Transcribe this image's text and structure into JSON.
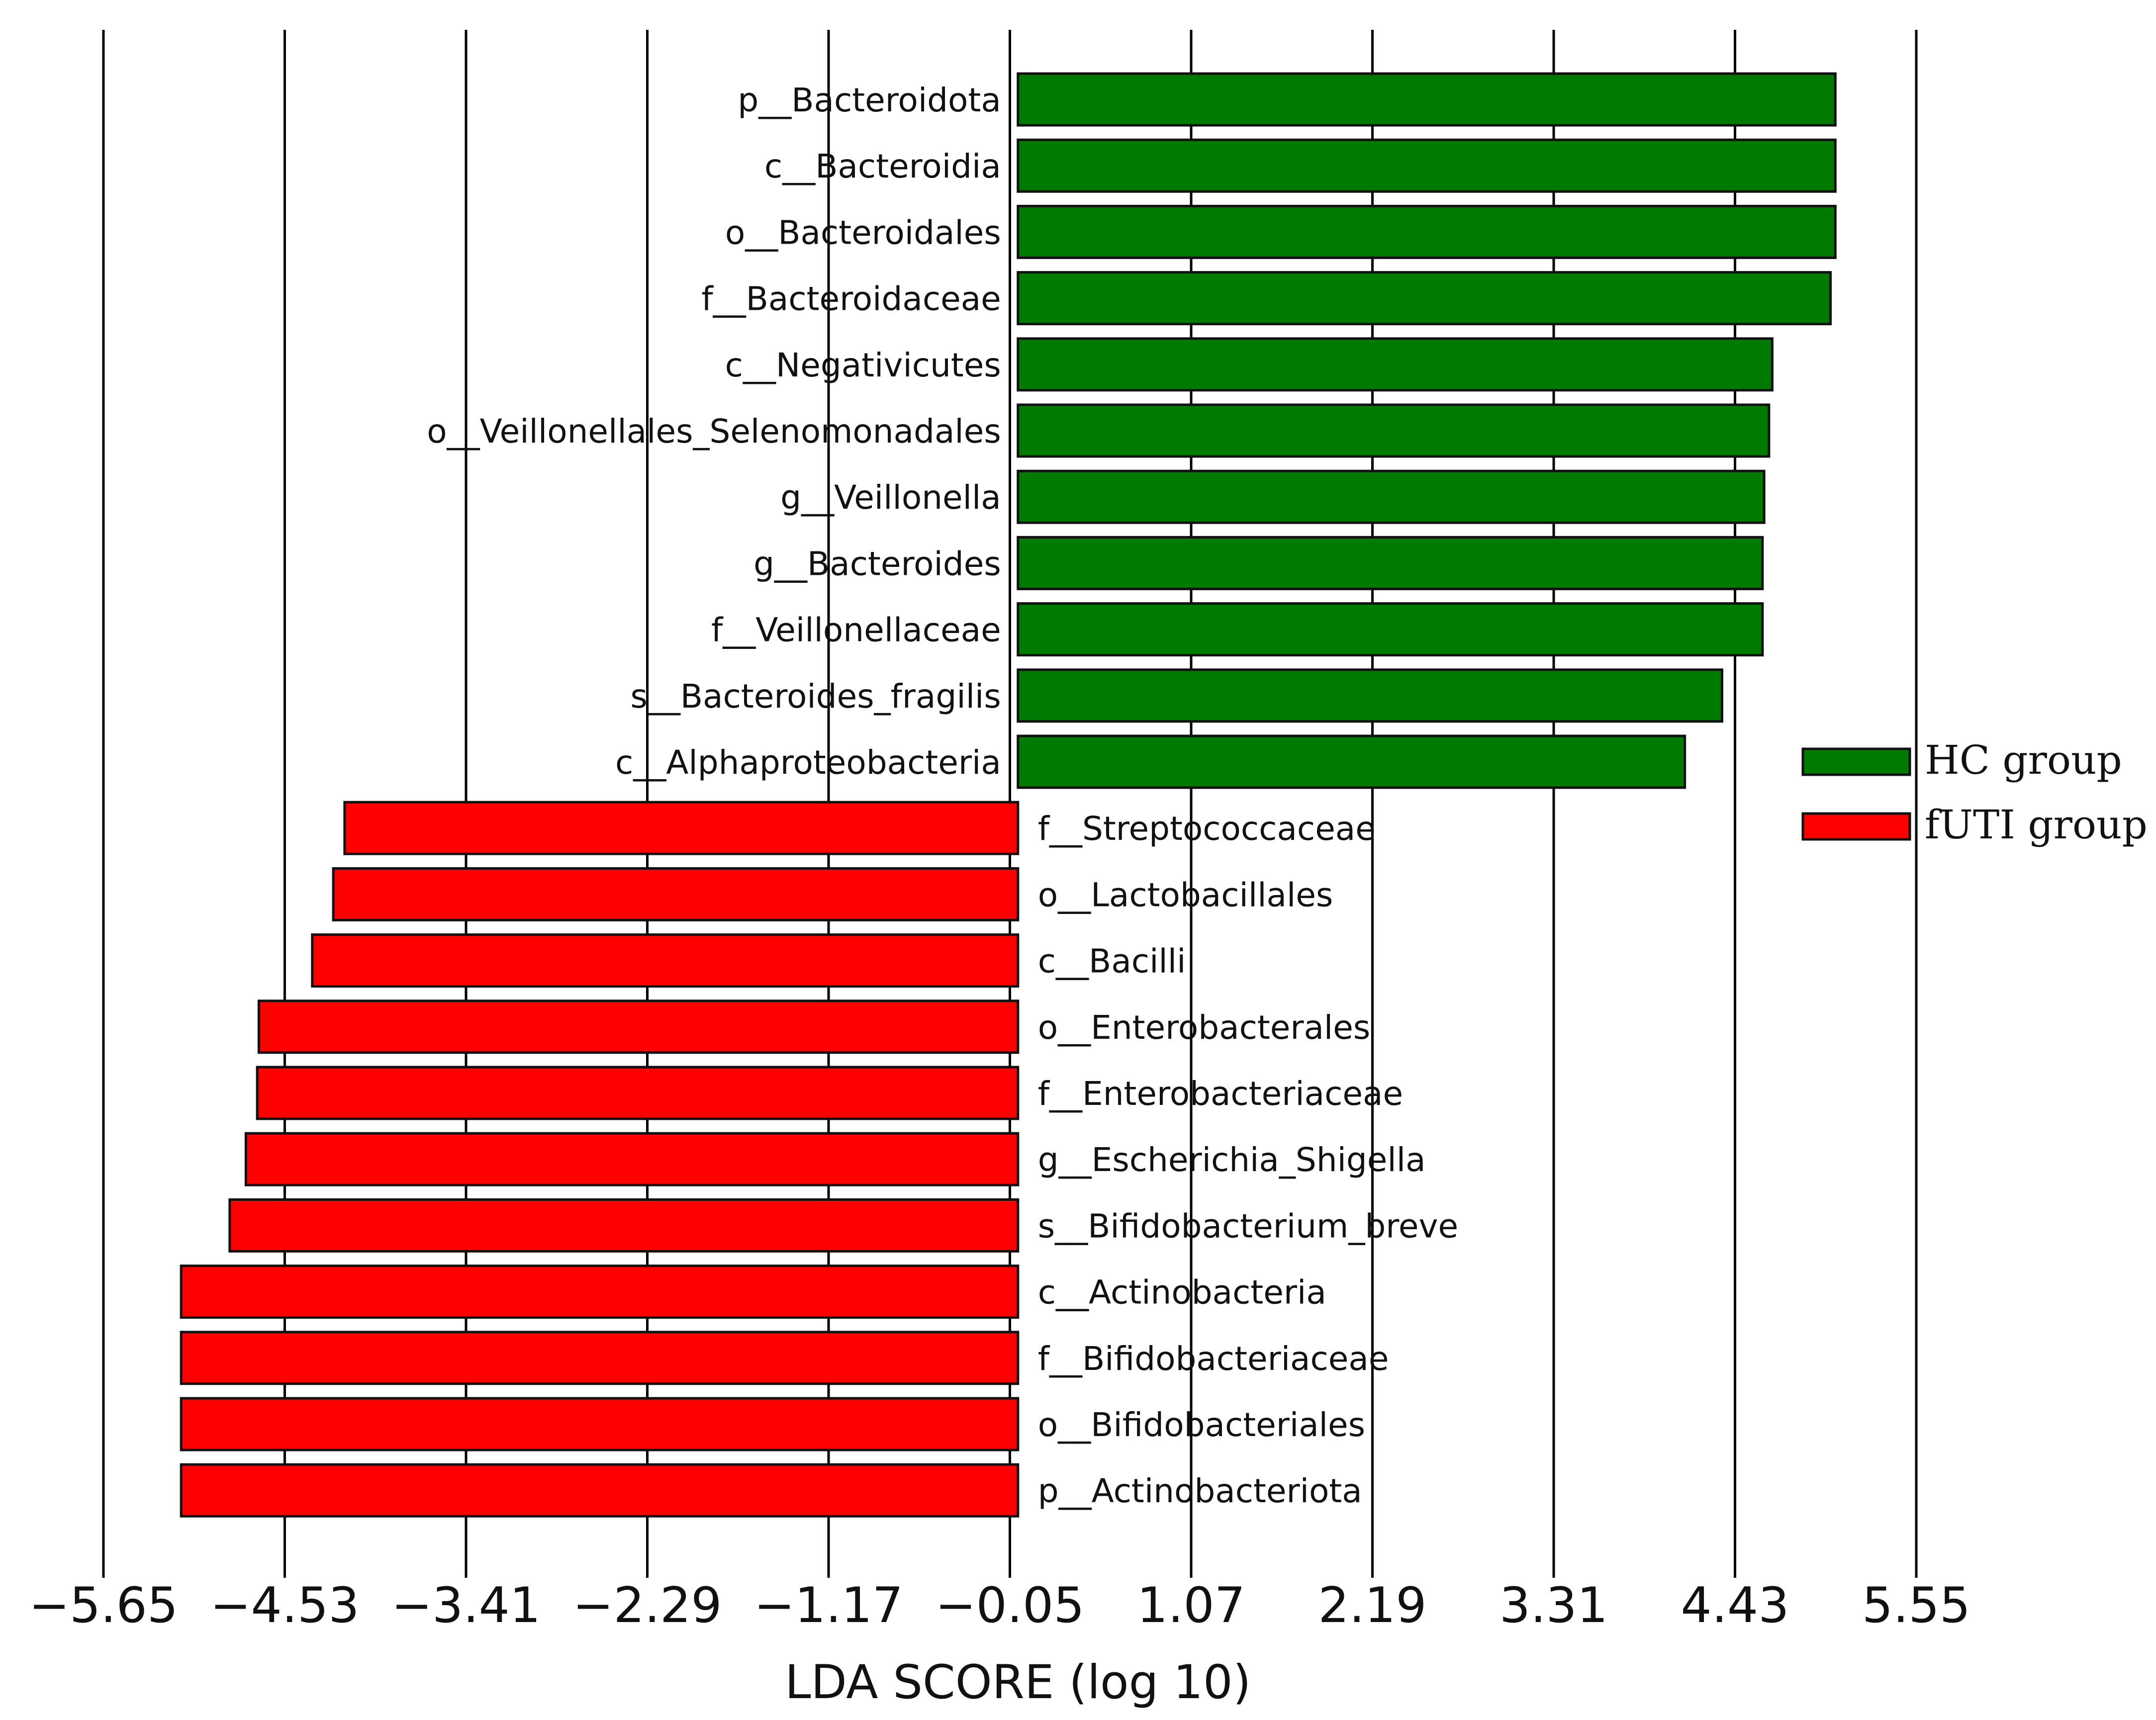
{
  "chart_data": {
    "type": "bar",
    "orientation": "horizontal",
    "xlabel": "LDA SCORE (log 10)",
    "xlim": [
      -5.65,
      5.55
    ],
    "xticks": [
      "−5.65",
      "−4.53",
      "−3.41",
      "−2.29",
      "−1.17",
      "−0.05",
      "1.07",
      "2.19",
      "3.31",
      "4.43",
      "5.55"
    ],
    "grid": "vertical",
    "legend_position": "right",
    "series": [
      {
        "name": "HC group",
        "color": "#007a00"
      },
      {
        "name": "fUTI group",
        "color": "#ff0000"
      }
    ],
    "bars": [
      {
        "label": "p__Bacteroidota",
        "value": 5.05,
        "group": "HC group"
      },
      {
        "label": "c__Bacteroidia",
        "value": 5.05,
        "group": "HC group"
      },
      {
        "label": "o__Bacteroidales",
        "value": 5.05,
        "group": "HC group"
      },
      {
        "label": "f__Bacteroidaceae",
        "value": 5.02,
        "group": "HC group"
      },
      {
        "label": "c__Negativicutes",
        "value": 4.66,
        "group": "HC group"
      },
      {
        "label": "o__Veillonellales_Selenomonadales",
        "value": 4.64,
        "group": "HC group"
      },
      {
        "label": "g__Veillonella",
        "value": 4.61,
        "group": "HC group"
      },
      {
        "label": "g__Bacteroides",
        "value": 4.6,
        "group": "HC group"
      },
      {
        "label": "f__Veillonellaceae",
        "value": 4.6,
        "group": "HC group"
      },
      {
        "label": "s__Bacteroides_fragilis",
        "value": 4.35,
        "group": "HC group"
      },
      {
        "label": "c__Alphaproteobacteria",
        "value": 4.12,
        "group": "HC group"
      },
      {
        "label": "f__Streptococcaceae",
        "value": -4.16,
        "group": "fUTI group"
      },
      {
        "label": "o__Lactobacillales",
        "value": -4.23,
        "group": "fUTI group"
      },
      {
        "label": "c__Bacilli",
        "value": -4.36,
        "group": "fUTI group"
      },
      {
        "label": "o__Enterobacterales",
        "value": -4.69,
        "group": "fUTI group"
      },
      {
        "label": "f__Enterobacteriaceae",
        "value": -4.7,
        "group": "fUTI group"
      },
      {
        "label": "g__Escherichia_Shigella",
        "value": -4.77,
        "group": "fUTI group"
      },
      {
        "label": "s__Bifidobacterium_breve",
        "value": -4.87,
        "group": "fUTI group"
      },
      {
        "label": "c__Actinobacteria",
        "value": -5.17,
        "group": "fUTI group"
      },
      {
        "label": "f__Bifidobacteriaceae",
        "value": -5.17,
        "group": "fUTI group"
      },
      {
        "label": "o__Bifidobacteriales",
        "value": -5.17,
        "group": "fUTI group"
      },
      {
        "label": "p__Actinobacteriota",
        "value": -5.17,
        "group": "fUTI group"
      }
    ]
  }
}
